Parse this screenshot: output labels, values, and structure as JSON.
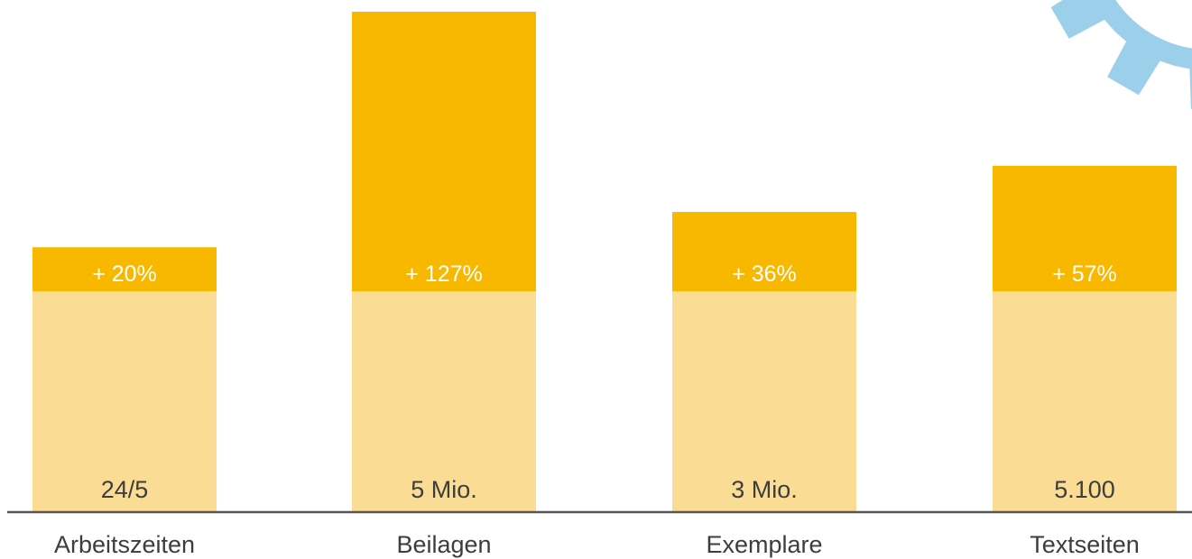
{
  "chart_data": {
    "type": "bar",
    "categories": [
      "Arbeitszeiten",
      "Beilagen",
      "Exemplare",
      "Textseiten"
    ],
    "base_labels": [
      "24/5",
      "5 Mio.",
      "3 Mio.",
      "5.100"
    ],
    "growth_labels": [
      "+ 20%",
      "+ 127%",
      "+ 36%",
      "+ 57%"
    ],
    "growth_percent": [
      20,
      127,
      36,
      57
    ],
    "colors": {
      "base": "#fbdc95",
      "growth": "#f9b800",
      "gear": "#9ccfea",
      "axis": "#555555",
      "category_text": "#3d3d3d",
      "base_text": "#3d3d3d",
      "growth_text": "#ffffff"
    }
  },
  "decoration": {
    "icon": "gear-icon"
  }
}
